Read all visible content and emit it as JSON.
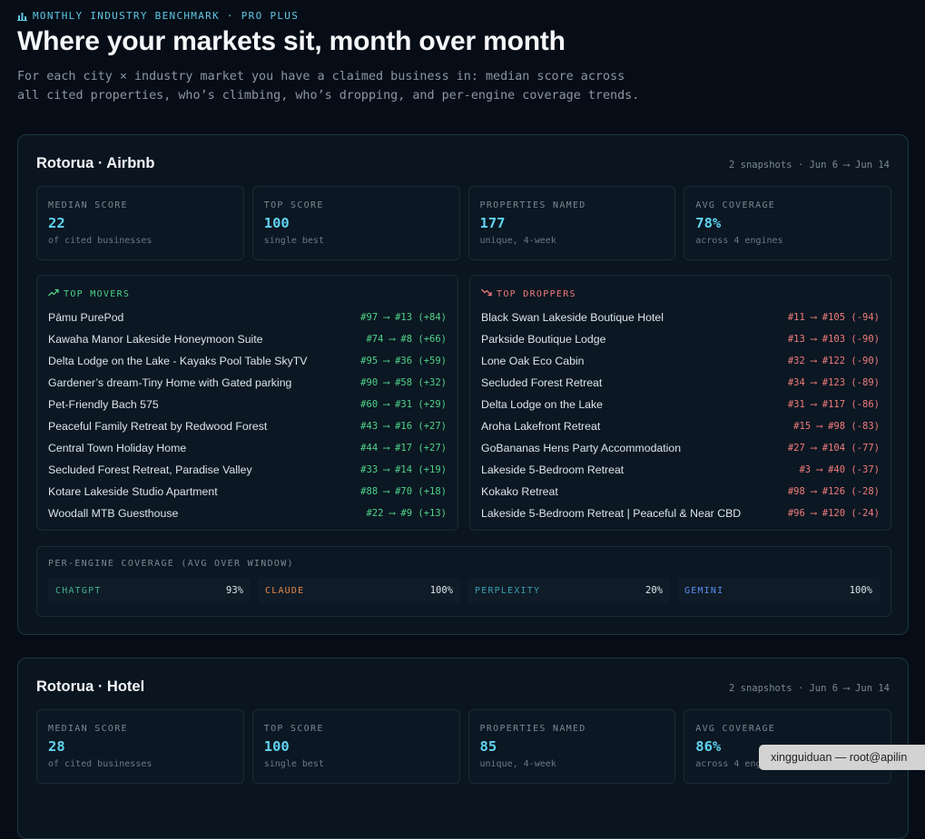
{
  "header": {
    "eyebrow": "MONTHLY INDUSTRY BENCHMARK · PRO PLUS",
    "title": "Where your markets sit, month over month",
    "intro": "For each city × industry market you have a claimed business in: median score across all cited properties, who’s climbing, who’s dropping, and per-engine coverage trends."
  },
  "colors": {
    "accent": "#5fd4f2",
    "up": "#4fd38a",
    "down": "#f07c7c",
    "chatgpt": "#3fb08a",
    "claude": "#e8874a",
    "perplexity": "#3a9fb0",
    "gemini": "#5b8cf0"
  },
  "markets": [
    {
      "title": "Rotorua · Airbnb",
      "meta": "2 snapshots · Jun 6 ⟶ Jun 14",
      "stats": [
        {
          "label": "MEDIAN SCORE",
          "value": "22",
          "sub": "of cited businesses"
        },
        {
          "label": "TOP SCORE",
          "value": "100",
          "sub": "single best"
        },
        {
          "label": "PROPERTIES NAMED",
          "value": "177",
          "sub": "unique, 4-week"
        },
        {
          "label": "AVG COVERAGE",
          "value": "78%",
          "sub": "across 4 engines"
        }
      ],
      "movers_label": "TOP MOVERS",
      "movers": [
        {
          "name": "Pāmu PurePod",
          "rank": "#97 ⟶ #13 (+84)"
        },
        {
          "name": "Kawaha Manor Lakeside Honeymoon Suite",
          "rank": "#74 ⟶ #8 (+66)"
        },
        {
          "name": "Delta Lodge on the Lake - Kayaks Pool Table SkyTV",
          "rank": "#95 ⟶ #36 (+59)"
        },
        {
          "name": "Gardener’s dream-Tiny Home with Gated parking",
          "rank": "#90 ⟶ #58 (+32)"
        },
        {
          "name": "Pet-Friendly Bach 575",
          "rank": "#60 ⟶ #31 (+29)"
        },
        {
          "name": "Peaceful Family Retreat by Redwood Forest",
          "rank": "#43 ⟶ #16 (+27)"
        },
        {
          "name": "Central Town Holiday Home",
          "rank": "#44 ⟶ #17 (+27)"
        },
        {
          "name": "Secluded Forest Retreat, Paradise Valley",
          "rank": "#33 ⟶ #14 (+19)"
        },
        {
          "name": "Kotare Lakeside Studio Apartment",
          "rank": "#88 ⟶ #70 (+18)"
        },
        {
          "name": "Woodall MTB Guesthouse",
          "rank": "#22 ⟶ #9 (+13)"
        }
      ],
      "droppers_label": "TOP DROPPERS",
      "droppers": [
        {
          "name": "Black Swan Lakeside Boutique Hotel",
          "rank": "#11 ⟶ #105 (-94)"
        },
        {
          "name": "Parkside Boutique Lodge",
          "rank": "#13 ⟶ #103 (-90)"
        },
        {
          "name": "Lone Oak Eco Cabin",
          "rank": "#32 ⟶ #122 (-90)"
        },
        {
          "name": "Secluded Forest Retreat",
          "rank": "#34 ⟶ #123 (-89)"
        },
        {
          "name": "Delta Lodge on the Lake",
          "rank": "#31 ⟶ #117 (-86)"
        },
        {
          "name": "Aroha Lakefront Retreat",
          "rank": "#15 ⟶ #98 (-83)"
        },
        {
          "name": "GoBananas Hens Party Accommodation",
          "rank": "#27 ⟶ #104 (-77)"
        },
        {
          "name": "Lakeside 5-Bedroom Retreat",
          "rank": "#3 ⟶ #40 (-37)"
        },
        {
          "name": "Kokako Retreat",
          "rank": "#98 ⟶ #126 (-28)"
        },
        {
          "name": "Lakeside 5-Bedroom Retreat | Peaceful & Near CBD",
          "rank": "#96 ⟶ #120 (-24)"
        }
      ],
      "engine_label": "PER-ENGINE COVERAGE (AVG OVER WINDOW)",
      "engines": [
        {
          "name": "CHATGPT",
          "value": "93%"
        },
        {
          "name": "CLAUDE",
          "value": "100%"
        },
        {
          "name": "PERPLEXITY",
          "value": "20%"
        },
        {
          "name": "GEMINI",
          "value": "100%"
        }
      ]
    },
    {
      "title": "Rotorua · Hotel",
      "meta": "2 snapshots · Jun 6 ⟶ Jun 14",
      "stats": [
        {
          "label": "MEDIAN SCORE",
          "value": "28",
          "sub": "of cited businesses"
        },
        {
          "label": "TOP SCORE",
          "value": "100",
          "sub": "single best"
        },
        {
          "label": "PROPERTIES NAMED",
          "value": "85",
          "sub": "unique, 4-week"
        },
        {
          "label": "AVG COVERAGE",
          "value": "86%",
          "sub": "across 4 engines"
        }
      ]
    }
  ],
  "toast": {
    "text": "xingguiduan — root@apilin"
  }
}
